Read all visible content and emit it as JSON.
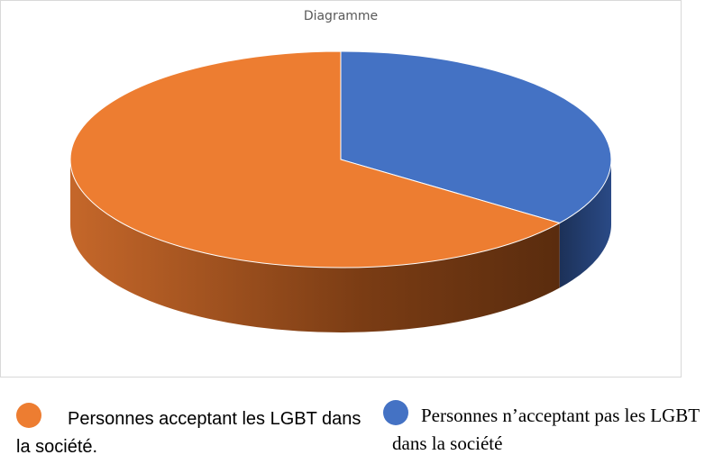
{
  "chart_data": {
    "type": "pie",
    "title": "Diagramme",
    "categories": [
      "Personnes acceptant les LGBT dans la société.",
      "Personnes n’acceptant pas les LGBT dans la société"
    ],
    "values": [
      65,
      35
    ],
    "colors": [
      "#ed7d31",
      "#4472c4"
    ]
  }
}
